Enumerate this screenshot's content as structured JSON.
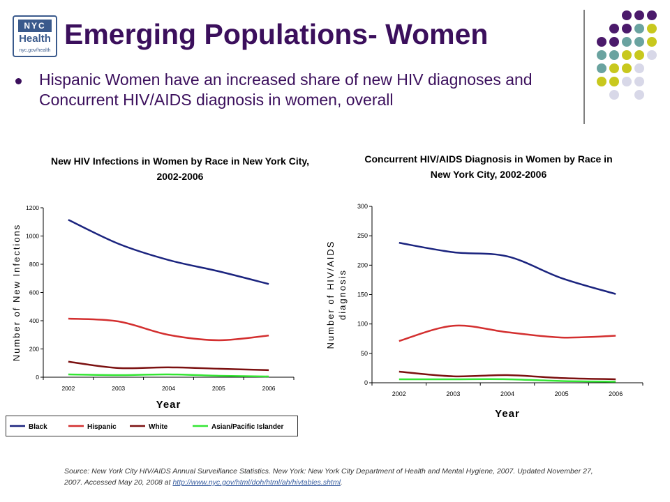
{
  "header": {
    "logo_top": "NYC",
    "logo_main": "Health",
    "logo_url": "nyc.gov/health",
    "title": "Emerging Populations- Women",
    "bullet": "Hispanic Women have an increased share of new HIV diagnoses and Concurrent HIV/AIDS diagnosis in women, overall"
  },
  "decoration_colors": [
    "#4b1a6b",
    "#6aa3a0",
    "#c8c81e",
    "#d8d8e8"
  ],
  "footer": {
    "source_text": "Source: New York City HIV/AIDS Annual Surveillance Statistics. New York: New York City Department of Health and Mental Hygiene, 2007. Updated November 27, 2007. Accessed May 20, 2008 at ",
    "source_link": "http://www.nyc.gov/html/doh/html/ah/hivtables.shtml",
    "source_end": "."
  },
  "chart_data": [
    {
      "type": "line",
      "title": "New HIV Infections in Women by Race in New York City, 2002-2006",
      "title_lines": [
        "New HIV Infections in Women by Race in New York City,",
        "2002-2006"
      ],
      "xlabel": "Year",
      "ylabel": "Number of New Infections",
      "ylabel_lines": [
        "Number of New Infections"
      ],
      "x": [
        "2002",
        "2003",
        "2004",
        "2005",
        "2006"
      ],
      "ylim": [
        0,
        1200
      ],
      "yticks": [
        0,
        200,
        400,
        600,
        800,
        1000,
        1200
      ],
      "series": [
        {
          "name": "Black",
          "color": "#1a237e",
          "values": [
            1115,
            945,
            830,
            750,
            660
          ]
        },
        {
          "name": "Hispanic",
          "color": "#d32f2f",
          "values": [
            415,
            395,
            300,
            262,
            295
          ]
        },
        {
          "name": "White",
          "color": "#7b1010",
          "values": [
            110,
            65,
            70,
            60,
            50
          ]
        },
        {
          "name": "Asian/Pacific Islander",
          "color": "#33e633",
          "values": [
            20,
            15,
            20,
            10,
            5
          ]
        }
      ]
    },
    {
      "type": "line",
      "title": "Concurrent HIV/AIDS Diagnosis in Women by Race in New York City, 2002-2006",
      "title_lines": [
        "Concurrent HIV/AIDS Diagnosis in Women by Race in",
        "New York City, 2002-2006"
      ],
      "xlabel": "Year",
      "ylabel": "Number of HIV/AIDS diagnosis",
      "ylabel_lines": [
        "Number of HIV/AIDS",
        "diagnosis"
      ],
      "x": [
        "2002",
        "2003",
        "2004",
        "2005",
        "2006"
      ],
      "ylim": [
        0,
        300
      ],
      "yticks": [
        0,
        50,
        100,
        150,
        200,
        250,
        300
      ],
      "series": [
        {
          "name": "Black",
          "color": "#1a237e",
          "values": [
            238,
            222,
            215,
            178,
            151
          ]
        },
        {
          "name": "Hispanic",
          "color": "#d32f2f",
          "values": [
            71,
            97,
            86,
            77,
            80
          ]
        },
        {
          "name": "White",
          "color": "#7b1010",
          "values": [
            19,
            11,
            13,
            8,
            6
          ]
        },
        {
          "name": "Asian/Pacific Islander",
          "color": "#33e633",
          "values": [
            6,
            6,
            6,
            3,
            2
          ]
        }
      ]
    }
  ]
}
